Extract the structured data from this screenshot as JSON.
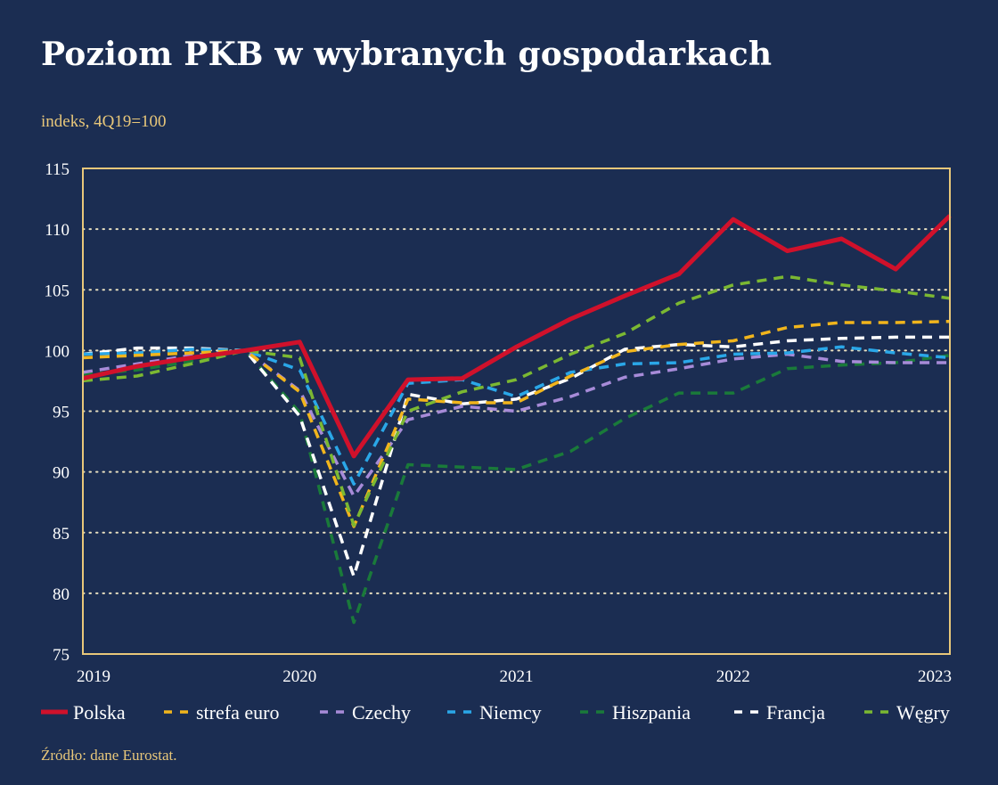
{
  "header": {
    "title": "Poziom PKB w wybranych gospodarkach",
    "subtitle": "indeks, 4Q19=100"
  },
  "footer": {
    "source": "Źródło: dane Eurostat."
  },
  "chart_data": {
    "type": "line",
    "ylabel": "indeks, 4Q19=100",
    "ylim": [
      75,
      115
    ],
    "yticks": [
      75,
      80,
      85,
      90,
      95,
      100,
      105,
      110,
      115
    ],
    "xlim": [
      2019,
      2023
    ],
    "xticks": [
      "2019",
      "2020",
      "2021",
      "2022",
      "2023"
    ],
    "grid": "horizontal dotted",
    "legend_position": "bottom",
    "x": [
      2019.0,
      2019.25,
      2019.5,
      2019.75,
      2020.0,
      2020.25,
      2020.5,
      2020.75,
      2021.0,
      2021.25,
      2021.5,
      2021.75,
      2022.0,
      2022.25,
      2022.5,
      2022.75,
      2023.0
    ],
    "series": [
      {
        "name": "Polska",
        "color": "#d0112b",
        "dash": "solid",
        "values": [
          97.7,
          98.7,
          99.4,
          100.0,
          100.7,
          91.3,
          97.6,
          97.7,
          100.3,
          102.6,
          104.5,
          106.3,
          110.8,
          108.2,
          109.2,
          106.7,
          111.1
        ]
      },
      {
        "name": "strefa euro",
        "color": "#f1b51c",
        "dash": "dashed",
        "values": [
          99.4,
          99.6,
          99.8,
          100.0,
          96.6,
          85.5,
          96.0,
          95.7,
          95.7,
          97.9,
          99.9,
          100.5,
          100.8,
          101.9,
          102.3,
          102.3,
          102.4
        ]
      },
      {
        "name": "Czechy",
        "color": "#a78bd8",
        "dash": "dashed",
        "values": [
          98.2,
          98.9,
          99.6,
          100.0,
          96.7,
          88.0,
          94.3,
          95.4,
          95.0,
          96.2,
          97.8,
          98.5,
          99.3,
          99.7,
          99.1,
          99.0,
          99.0
        ]
      },
      {
        "name": "Niemcy",
        "color": "#2aa7e8",
        "dash": "dashed",
        "values": [
          99.7,
          99.8,
          100.1,
          100.0,
          98.4,
          89.0,
          97.3,
          97.6,
          96.2,
          98.2,
          98.9,
          99.0,
          99.7,
          99.8,
          100.3,
          99.8,
          99.4
        ]
      },
      {
        "name": "Hiszpania",
        "color": "#1a7a3a",
        "dash": "dashed",
        "values": [
          98.0,
          98.4,
          99.1,
          100.0,
          94.9,
          77.6,
          90.6,
          90.4,
          90.2,
          91.7,
          94.4,
          96.5,
          96.5,
          98.5,
          98.8,
          99.0,
          99.6
        ]
      },
      {
        "name": "Francja",
        "color": "#ffffff",
        "dash": "dashed",
        "values": [
          99.7,
          100.2,
          100.2,
          100.0,
          94.6,
          81.4,
          96.4,
          95.6,
          96.0,
          97.7,
          100.1,
          100.5,
          100.3,
          100.8,
          101.0,
          101.1,
          101.1
        ]
      },
      {
        "name": "Węgry",
        "color": "#7bb832",
        "dash": "dashed",
        "values": [
          97.5,
          97.9,
          98.9,
          100.0,
          99.4,
          85.6,
          95.0,
          96.6,
          97.6,
          99.7,
          101.4,
          103.9,
          105.4,
          106.1,
          105.4,
          104.9,
          104.3
        ]
      }
    ]
  }
}
